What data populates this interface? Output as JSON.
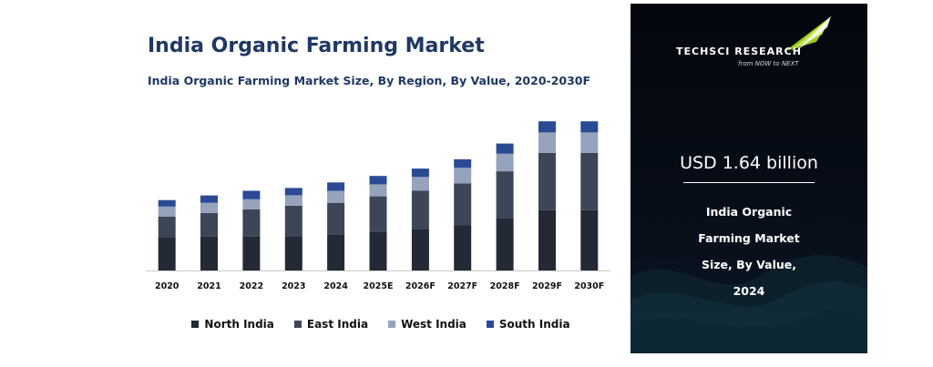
{
  "chart_data": {
    "type": "bar",
    "stacked": true,
    "title": "India Organic Farming Market",
    "subtitle": "India Organic Farming Market Size, By Region, By Value, 2020-2030F",
    "categories": [
      "2020",
      "2021",
      "2022",
      "2023",
      "2024",
      "2025E",
      "2026F",
      "2027F",
      "2028F",
      "2029F",
      "2030F"
    ],
    "series": [
      {
        "name": "North India",
        "color": "#232a35",
        "values": [
          36,
          37,
          37,
          37,
          39,
          42,
          45,
          49,
          56,
          65,
          65
        ]
      },
      {
        "name": "East India",
        "color": "#3d4657",
        "values": [
          22,
          25,
          29,
          33,
          34,
          38,
          41,
          45,
          51,
          62,
          62
        ]
      },
      {
        "name": "West India",
        "color": "#95a3bd",
        "values": [
          11,
          11,
          11,
          11,
          13,
          13,
          15,
          17,
          19,
          22,
          22
        ]
      },
      {
        "name": "South India",
        "color": "#2b4a94",
        "values": [
          7,
          8,
          9,
          8,
          9,
          9,
          9,
          9,
          11,
          12,
          12
        ]
      }
    ],
    "ylim": [
      0,
      170
    ],
    "xlabel": "",
    "ylabel": "",
    "legend": "bottom",
    "grid": false
  },
  "info": {
    "brand": "TECHSCI RESEARCH",
    "tagline": "from NOW to NEXT",
    "value": "USD 1.64 billion",
    "description_lines": [
      "India Organic",
      "Farming Market",
      "Size, By Value,",
      "2024"
    ]
  }
}
